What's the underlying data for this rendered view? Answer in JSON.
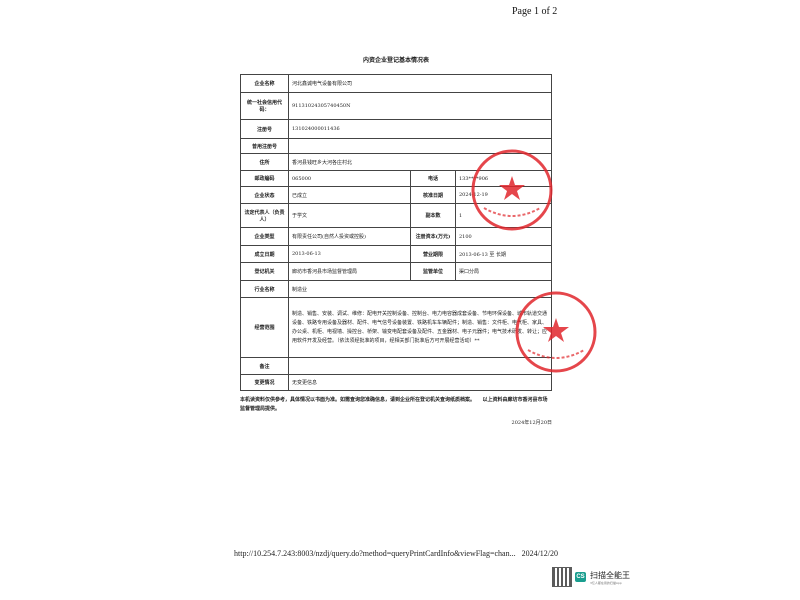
{
  "header": {
    "page_indicator": "Page 1 of 2"
  },
  "document": {
    "title": "内资企业登记基本情况表",
    "rows": [
      {
        "label": "企业名称",
        "value": "河北鑫诚电气设备有限公司"
      },
      {
        "label": "统一社会信用代码：",
        "value": "91131024305740450N"
      },
      {
        "label": "注册号",
        "value": "131024000011436"
      },
      {
        "label": "曾用注册号",
        "value": ""
      },
      {
        "label": "住所",
        "value": "香河县钱旺乡大河各庄村北"
      }
    ],
    "pair_rows": [
      {
        "label": "邮政编码",
        "value": "065000",
        "label2": "电话",
        "value2": "133****906"
      },
      {
        "label": "企业状态",
        "value": "已成立",
        "label2": "核准日期",
        "value2": "2024-12-19"
      },
      {
        "label": "法定代表人（负责人）",
        "value": "于学文",
        "label2": "副本数",
        "value2": "1"
      },
      {
        "label": "企业类型",
        "value": "有限责任公司(自然人投资或控股)",
        "label2": "注册资本(万元)",
        "value2": "2100"
      },
      {
        "label": "成立日期",
        "value": "2013-06-13",
        "label2": "营业期限",
        "value2": "2013-06-13 至 长期"
      },
      {
        "label": "登记机关",
        "value": "廊坊市香河县市场监督管理局",
        "label2": "监管单位",
        "value2": "渠口分局"
      }
    ],
    "industry": {
      "label": "行业名称",
      "value": "制造业"
    },
    "scope": {
      "label": "经营范围",
      "value": "制造、销售、安装、调试、维修：配电开关控制设备、控制台、电力电容器成套设备、节电环保设备、城市轨道交通设备、铁路专用设备及器材、配件、电气信号设备装置、铁路机车车辆配件；制造、销售：文件柜、电气柜、家具、办公桌、机柜、电视墙、操控台、桥架、输变电配套设备及配件、五金器材、电子元器件；电气技术研发、转让；应用软件开发及经营。（依法须经批准的项目，经相关部门批准后方可开展经营活动）**"
    },
    "remarks": {
      "label": "备注",
      "value": ""
    },
    "changes": {
      "label": "变更情况",
      "value": "无变更信息"
    },
    "note": "本机读资料仅供参考，具体情况以书面为准。如需查询您准确信息，请到企业所在登记机关查询纸质档案。　　以上资料由廊坊市香河县市场监督管理局提供。",
    "date": "2024年12月20日"
  },
  "stamp": {
    "color": "#e0262b",
    "text": "香河县行政审批专用章"
  },
  "footer": {
    "url": "http://10.254.7.243:8003/nzdj/query.do?method=queryPrintCardInfo&viewFlag=chan...",
    "print_date": "2024/12/20"
  },
  "watermark": {
    "brand": "扫描全能王",
    "tagline": "3亿人都在用的扫描App",
    "logo": "CS"
  }
}
